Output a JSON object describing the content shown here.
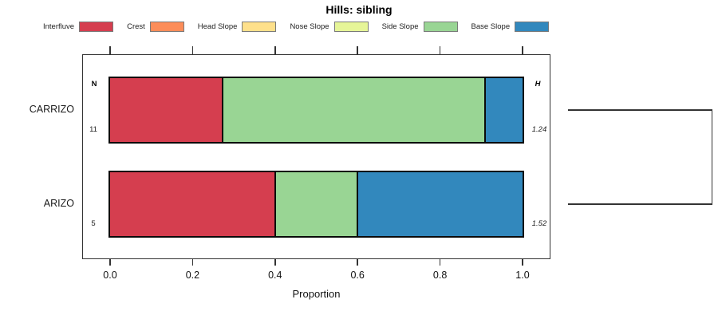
{
  "title": "Hills: sibling",
  "legend": {
    "items": [
      {
        "label": "Interfluve",
        "color": "#D53E4F"
      },
      {
        "label": "Crest",
        "color": "#FC8D59"
      },
      {
        "label": "Head Slope",
        "color": "#FEE08B"
      },
      {
        "label": "Nose Slope",
        "color": "#E6F598"
      },
      {
        "label": "Side Slope",
        "color": "#99D594"
      },
      {
        "label": "Base Slope",
        "color": "#3288BD"
      }
    ]
  },
  "chart_data": {
    "type": "bar",
    "subtype": "horizontal-stacked-proportion",
    "title": "Hills: sibling",
    "xlabel": "Proportion",
    "xlim": [
      0,
      1
    ],
    "x_ticks": [
      0.0,
      0.2,
      0.4,
      0.6,
      0.8,
      1.0
    ],
    "x_tick_labels": [
      "0.0",
      "0.2",
      "0.4",
      "0.6",
      "0.8",
      "1.0"
    ],
    "legend_position": "top",
    "grid": false,
    "columns": {
      "left_header": "N",
      "right_header": "H"
    },
    "rows": [
      {
        "category": "CARRIZO",
        "n": "11",
        "h": "1.24",
        "segments": [
          {
            "name": "Interfluve",
            "value": 0.273,
            "color": "#D53E4F"
          },
          {
            "name": "Side Slope",
            "value": 0.636,
            "color": "#99D594"
          },
          {
            "name": "Base Slope",
            "value": 0.091,
            "color": "#3288BD"
          }
        ]
      },
      {
        "category": "ARIZO",
        "n": "5",
        "h": "1.52",
        "segments": [
          {
            "name": "Interfluve",
            "value": 0.4,
            "color": "#D53E4F"
          },
          {
            "name": "Side Slope",
            "value": 0.2,
            "color": "#99D594"
          },
          {
            "name": "Base Slope",
            "value": 0.4,
            "color": "#3288BD"
          }
        ]
      }
    ],
    "dendrogram": {
      "present": true,
      "connects": [
        "CARRIZO",
        "ARIZO"
      ]
    }
  }
}
